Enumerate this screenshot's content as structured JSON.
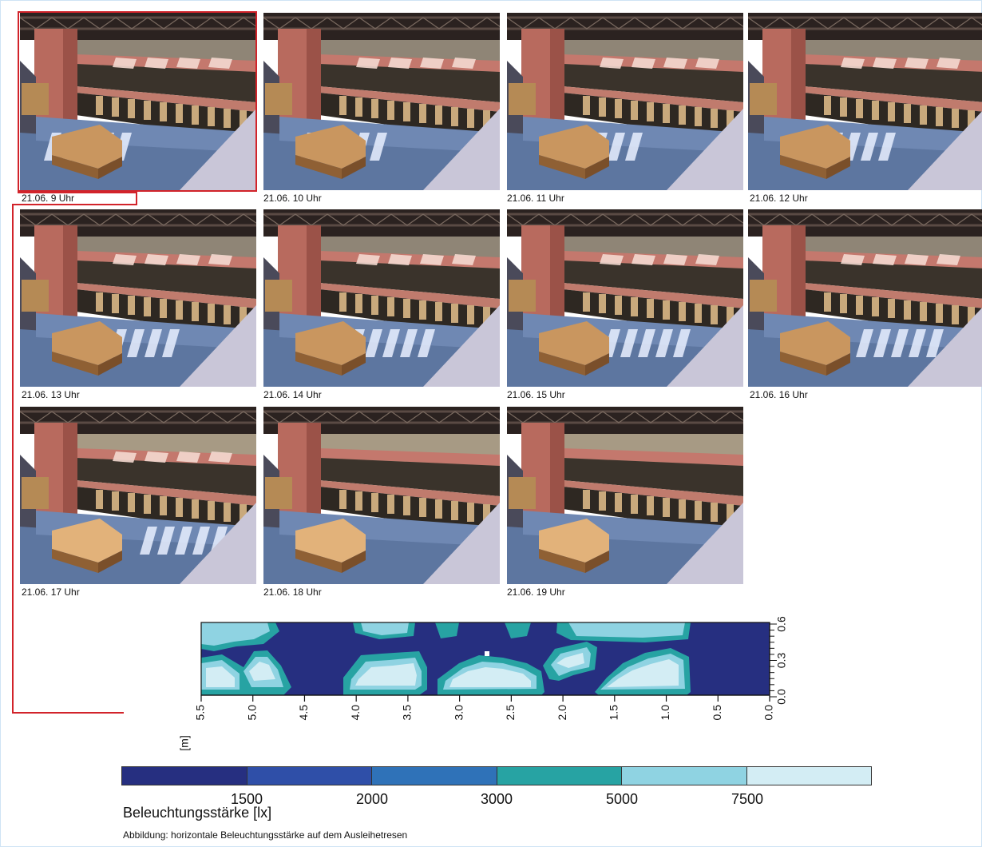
{
  "thumbnails": [
    {
      "caption": "21.06. 9 Uhr"
    },
    {
      "caption": "21.06. 10 Uhr"
    },
    {
      "caption": "21.06. 11 Uhr"
    },
    {
      "caption": "21.06. 12 Uhr"
    },
    {
      "caption": "21.06. 13 Uhr"
    },
    {
      "caption": "21.06. 14 Uhr"
    },
    {
      "caption": "21.06. 15 Uhr"
    },
    {
      "caption": "21.06. 16 Uhr"
    },
    {
      "caption": "21.06. 17 Uhr"
    },
    {
      "caption": "21.06. 18 Uhr"
    },
    {
      "caption": "21.06. 19 Uhr"
    }
  ],
  "selected_thumbnail": "21.06. 9 Uhr",
  "colors": {
    "selection": "#d2232a",
    "levels": [
      "#262f80",
      "#2f4fa8",
      "#2f72b8",
      "#27a3a3",
      "#8fd3e2",
      "#d3edf4"
    ]
  },
  "chart_data": {
    "type": "heatmap",
    "title": "",
    "xlabel": "[m]",
    "x_ticks": [
      "5.5",
      "5.0",
      "4.5",
      "4.0",
      "3.5",
      "3.0",
      "2.5",
      "2.0",
      "1.5",
      "1.0",
      "0.5",
      "0.0"
    ],
    "y_ticks": [
      "0.0",
      "0.3",
      "0.6"
    ],
    "xlim": [
      5.5,
      0.0
    ],
    "ylim": [
      0.0,
      0.6
    ],
    "colorbar": {
      "label": "Beleuchtungsstärke [lx]",
      "ticks": [
        "1500",
        "2000",
        "3000",
        "5000",
        "7500"
      ],
      "levels": [
        {
          "range": "< 1500"
        },
        {
          "range": "1500 - 2000"
        },
        {
          "range": "2000 - 3000"
        },
        {
          "range": "3000 - 5000"
        },
        {
          "range": "5000 - 7500"
        },
        {
          "range": "> 7500"
        }
      ]
    }
  },
  "footnote": "Abbildung: horizontale Beleuchtungsstärke auf dem Ausleihetresen"
}
